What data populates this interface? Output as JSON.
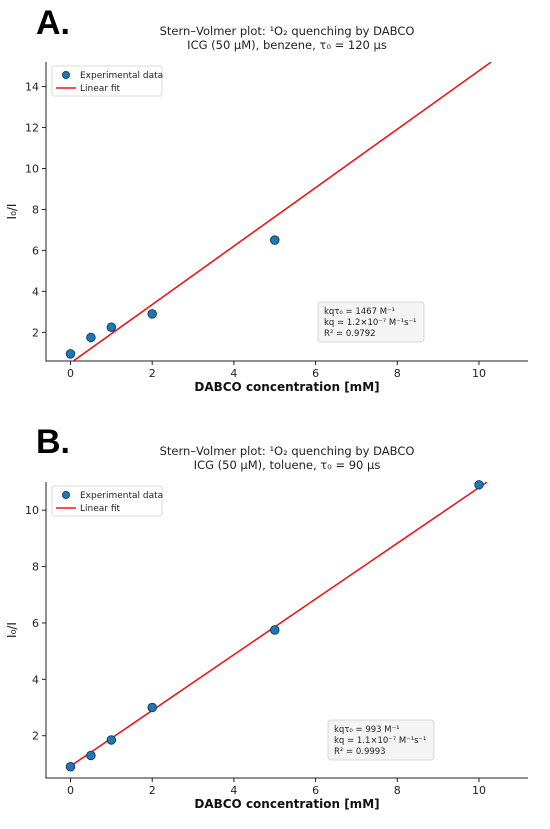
{
  "colors": {
    "point": "#1f77b4",
    "point_edge": "#0b3a5e",
    "fit": "#e8191c"
  },
  "chart_data": [
    {
      "panel": "A.",
      "type": "scatter",
      "title_line1": "Stern–Volmer plot: ¹O₂ quenching by DABCO",
      "title_line2": "ICG (50 μM), benzene, τ₀ = 120 μs",
      "xlabel": "DABCO concentration [mM]",
      "ylabel": "I₀/I",
      "xlim": [
        -0.6,
        11.2
      ],
      "ylim": [
        0.6,
        15.2
      ],
      "xticks": [
        0,
        2,
        4,
        6,
        8,
        10
      ],
      "yticks": [
        2,
        4,
        6,
        8,
        10,
        12,
        14
      ],
      "series": [
        {
          "name": "Experimental data",
          "kind": "points",
          "x": [
            0,
            0.5,
            1,
            2,
            5
          ],
          "y": [
            0.95,
            1.75,
            2.25,
            2.9,
            6.5
          ]
        },
        {
          "name": "Linear fit",
          "kind": "line",
          "x": [
            0,
            10.3
          ],
          "y": [
            0.5,
            15.2
          ]
        }
      ],
      "legend_position": "top-left",
      "annotation": [
        "kqτ₀ = 1467 M⁻¹",
        "kq = 1.2×10⁻⁷ M⁻¹s⁻¹",
        "R² = 0.9792"
      ],
      "grid": false
    },
    {
      "panel": "B.",
      "type": "scatter",
      "title_line1": "Stern–Volmer plot: ¹O₂ quenching by DABCO",
      "title_line2": "ICG (50 μM), toluene, τ₀ = 90 μs",
      "xlabel": "DABCO concentration [mM]",
      "ylabel": "I₀/I",
      "xlim": [
        -0.6,
        11.2
      ],
      "ylim": [
        0.5,
        11.0
      ],
      "xticks": [
        0,
        2,
        4,
        6,
        8,
        10
      ],
      "yticks": [
        2,
        4,
        6,
        8,
        10
      ],
      "series": [
        {
          "name": "Experimental data",
          "kind": "points",
          "x": [
            0,
            0.5,
            1,
            2,
            5,
            10
          ],
          "y": [
            0.9,
            1.3,
            1.85,
            3.0,
            5.75,
            10.9
          ]
        },
        {
          "name": "Linear fit",
          "kind": "line",
          "x": [
            0,
            10.2
          ],
          "y": [
            0.92,
            11.0
          ]
        }
      ],
      "legend_position": "top-left",
      "annotation": [
        "kqτ₀ = 993 M⁻¹",
        "kq = 1.1×10⁻⁷ M⁻¹s⁻¹",
        "R² = 0.9993"
      ],
      "grid": false
    }
  ]
}
